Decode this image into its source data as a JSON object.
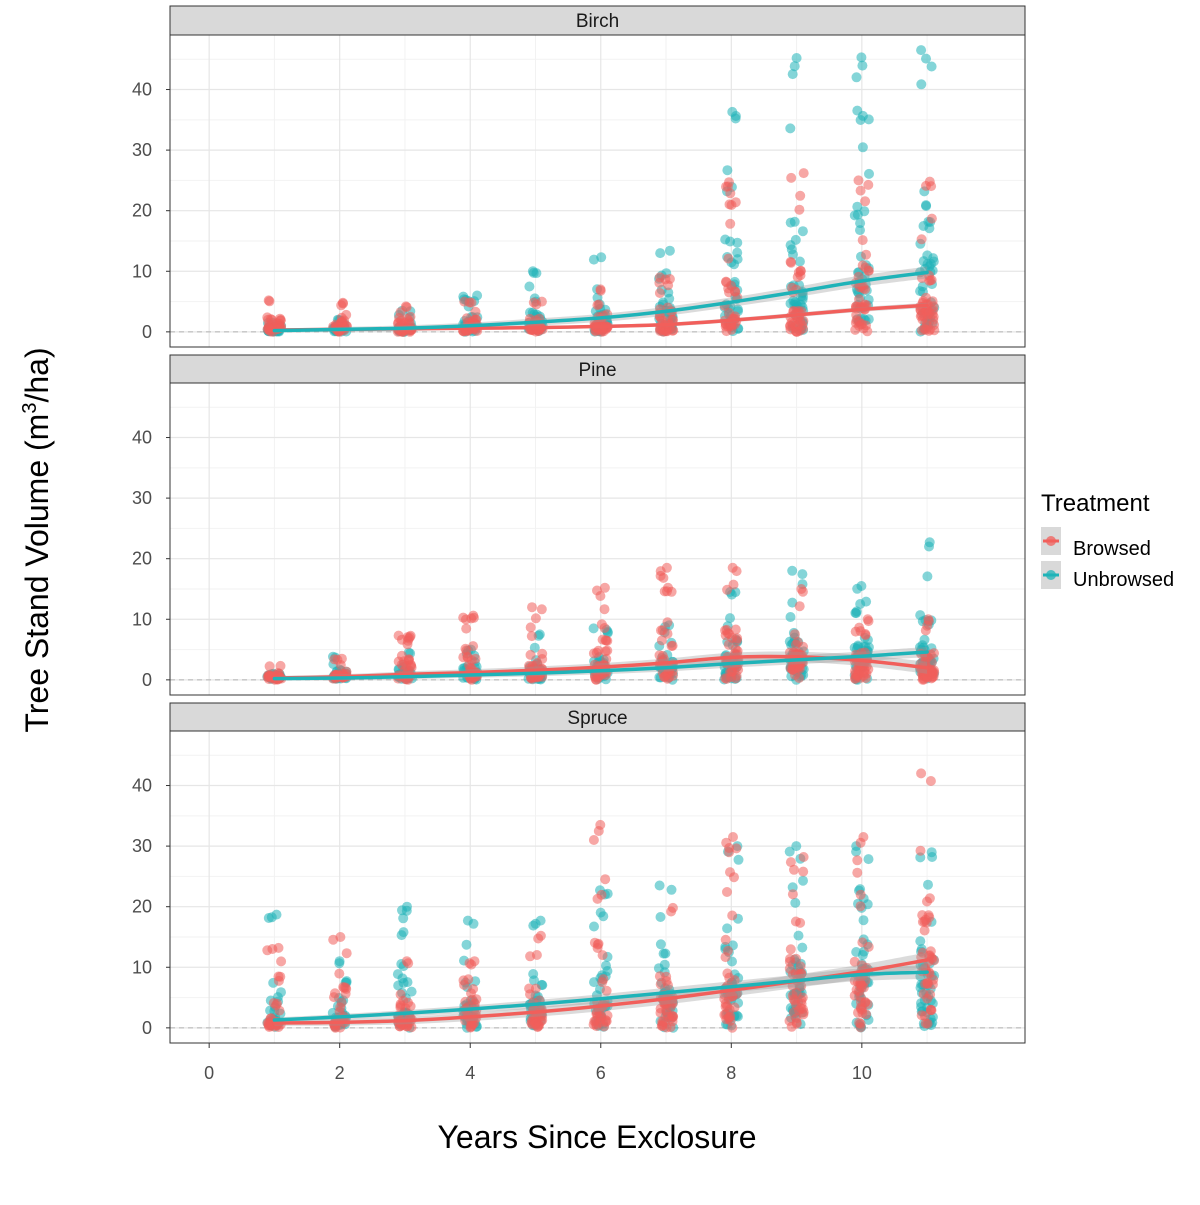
{
  "chart_data": {
    "type": "scatter",
    "xlabel": "Years Since Exclosure",
    "ylabel_main": "Tree Stand Volume  (m",
    "ylabel_sup": "3",
    "ylabel_tail": "/ha)",
    "xlim": [
      -0.6,
      12.5
    ],
    "ylim": [
      -2.5,
      49
    ],
    "x_ticks": [
      0,
      2,
      4,
      6,
      8,
      10
    ],
    "y_ticks": [
      0,
      10,
      20,
      30,
      40
    ],
    "legend": {
      "title": "Treatment",
      "position": "right",
      "entries": [
        {
          "name": "Browsed",
          "color": "#F15F5B"
        },
        {
          "name": "Unbrowsed",
          "color": "#1FB3B8"
        }
      ]
    },
    "colors": {
      "Browsed": "#F15F5B",
      "Unbrowsed": "#1FB3B8"
    },
    "panels": [
      {
        "name": "Birch",
        "trend": {
          "Browsed": [
            [
              1,
              0.3
            ],
            [
              2,
              0.4
            ],
            [
              3,
              0.5
            ],
            [
              4,
              0.6
            ],
            [
              5,
              0.7
            ],
            [
              6,
              0.9
            ],
            [
              7,
              1.2
            ],
            [
              8,
              1.9
            ],
            [
              9,
              2.8
            ],
            [
              10,
              3.7
            ],
            [
              11,
              4.4
            ]
          ],
          "Unbrowsed": [
            [
              1,
              0.2
            ],
            [
              2,
              0.4
            ],
            [
              3,
              0.6
            ],
            [
              4,
              1.0
            ],
            [
              5,
              1.6
            ],
            [
              6,
              2.3
            ],
            [
              7,
              3.4
            ],
            [
              8,
              4.9
            ],
            [
              9,
              6.6
            ],
            [
              10,
              8.4
            ],
            [
              11,
              9.8
            ]
          ]
        },
        "ribbon_width": {
          "Browsed": 0.3,
          "Unbrowsed": 0.7
        },
        "spread": {
          "Browsed": [
            [
              1,
              5.2
            ],
            [
              2,
              4.8
            ],
            [
              3,
              4.2
            ],
            [
              4,
              5.0
            ],
            [
              5,
              5.0
            ],
            [
              6,
              7.0
            ],
            [
              7,
              9.0
            ],
            [
              8,
              24.7
            ],
            [
              9,
              26.2
            ],
            [
              10,
              25.0
            ],
            [
              11,
              24.8
            ]
          ],
          "Unbrowsed": [
            [
              1,
              1.5
            ],
            [
              2,
              2.0
            ],
            [
              3,
              3.5
            ],
            [
              4,
              6.0
            ],
            [
              5,
              10.0
            ],
            [
              6,
              12.3
            ],
            [
              7,
              13.4
            ],
            [
              8,
              36.3
            ],
            [
              9,
              45.2
            ],
            [
              10,
              45.3
            ],
            [
              11,
              46.5
            ]
          ]
        }
      },
      {
        "name": "Pine",
        "trend": {
          "Browsed": [
            [
              1,
              0.3
            ],
            [
              2,
              0.5
            ],
            [
              3,
              0.9
            ],
            [
              4,
              1.2
            ],
            [
              5,
              1.6
            ],
            [
              6,
              2.1
            ],
            [
              7,
              2.8
            ],
            [
              8,
              3.7
            ],
            [
              9,
              3.8
            ],
            [
              10,
              3.2
            ],
            [
              11,
              2.0
            ]
          ],
          "Unbrowsed": [
            [
              1,
              0.2
            ],
            [
              2,
              0.3
            ],
            [
              3,
              0.5
            ],
            [
              4,
              0.8
            ],
            [
              5,
              1.1
            ],
            [
              6,
              1.5
            ],
            [
              7,
              2.0
            ],
            [
              8,
              2.7
            ],
            [
              9,
              3.3
            ],
            [
              10,
              3.9
            ],
            [
              11,
              4.6
            ]
          ]
        },
        "ribbon_width": {
          "Browsed": 0.7,
          "Unbrowsed": 0.6
        },
        "spread": {
          "Browsed": [
            [
              1,
              2.3
            ],
            [
              2,
              3.5
            ],
            [
              3,
              7.3
            ],
            [
              4,
              10.6
            ],
            [
              5,
              12.0
            ],
            [
              6,
              15.2
            ],
            [
              7,
              18.5
            ],
            [
              8,
              18.5
            ],
            [
              9,
              15.0
            ],
            [
              10,
              10.0
            ],
            [
              11,
              10.0
            ]
          ],
          "Unbrowsed": [
            [
              1,
              1.0
            ],
            [
              2,
              3.8
            ],
            [
              3,
              4.5
            ],
            [
              4,
              5.0
            ],
            [
              5,
              7.5
            ],
            [
              6,
              8.5
            ],
            [
              7,
              9.0
            ],
            [
              8,
              14.5
            ],
            [
              9,
              18.0
            ],
            [
              10,
              15.5
            ],
            [
              11,
              22.7
            ]
          ]
        }
      },
      {
        "name": "Spruce",
        "trend": {
          "Browsed": [
            [
              1,
              0.8
            ],
            [
              2,
              0.9
            ],
            [
              3,
              1.2
            ],
            [
              4,
              1.8
            ],
            [
              5,
              2.6
            ],
            [
              6,
              3.6
            ],
            [
              7,
              4.8
            ],
            [
              8,
              6.2
            ],
            [
              9,
              7.7
            ],
            [
              10,
              9.3
            ],
            [
              11,
              11.2
            ]
          ],
          "Unbrowsed": [
            [
              1,
              1.3
            ],
            [
              2,
              1.8
            ],
            [
              3,
              2.4
            ],
            [
              4,
              3.1
            ],
            [
              5,
              3.9
            ],
            [
              6,
              4.8
            ],
            [
              7,
              5.8
            ],
            [
              8,
              6.8
            ],
            [
              9,
              7.8
            ],
            [
              10,
              8.8
            ],
            [
              11,
              9.2
            ]
          ]
        },
        "ribbon_width": {
          "Browsed": 0.9,
          "Unbrowsed": 0.8
        },
        "spread": {
          "Browsed": [
            [
              1,
              13.2
            ],
            [
              2,
              15.0
            ],
            [
              3,
              11.0
            ],
            [
              4,
              11.0
            ],
            [
              5,
              15.2
            ],
            [
              6,
              33.5
            ],
            [
              7,
              19.8
            ],
            [
              8,
              31.5
            ],
            [
              9,
              28.2
            ],
            [
              10,
              31.5
            ],
            [
              11,
              42.0
            ]
          ],
          "Unbrowsed": [
            [
              1,
              18.7
            ],
            [
              2,
              11.0
            ],
            [
              3,
              20.0
            ],
            [
              4,
              17.7
            ],
            [
              5,
              17.7
            ],
            [
              6,
              22.7
            ],
            [
              7,
              23.5
            ],
            [
              8,
              30.0
            ],
            [
              9,
              30.0
            ],
            [
              10,
              30.0
            ],
            [
              11,
              29.0
            ]
          ]
        }
      }
    ]
  }
}
